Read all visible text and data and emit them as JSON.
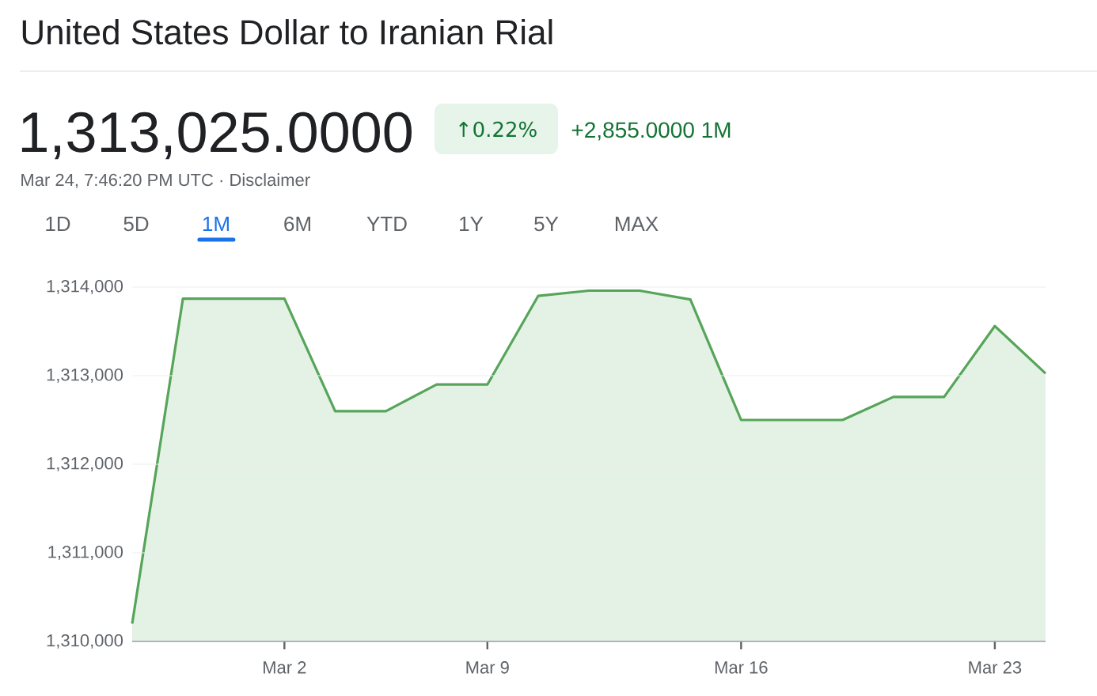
{
  "chart_data": {
    "type": "area",
    "title": "United States Dollar to Iranian Rial",
    "subtitle": "1,313,025.0000",
    "annotations": [
      "↑0.22%",
      "+2,855.0000 1M",
      "Mar 24, 7:46:20 PM UTC · Disclaimer",
      "1D",
      "5D",
      "1M",
      "6M",
      "YTD",
      "1Y",
      "5Y",
      "MAX"
    ],
    "categories": [
      null,
      null,
      null,
      "Mar 2",
      null,
      null,
      null,
      "Mar 9",
      null,
      null,
      null,
      null,
      "Mar 16",
      null,
      null,
      null,
      null,
      "Mar 23",
      null
    ],
    "series": [
      {
        "color": "#56a55a",
        "values": [
          1310200,
          1313870,
          1313870,
          1313870,
          1312600,
          1312600,
          1312900,
          1312900,
          1313900,
          1313960,
          1313960,
          1313860,
          1312500,
          1312500,
          1312500,
          1312760,
          1312760,
          1313560,
          1313025
        ]
      }
    ],
    "ylim": [
      1310000,
      1314000
    ],
    "yticks": [
      {
        "value": 1310000,
        "label": "1,310,000"
      },
      {
        "value": 1311000,
        "label": "1,311,000"
      },
      {
        "value": 1312000,
        "label": "1,312,000"
      },
      {
        "value": 1313000,
        "label": "1,313,000"
      },
      {
        "value": 1314000,
        "label": "1,314,000"
      }
    ],
    "grid": "y",
    "line_style": "solid"
  }
}
